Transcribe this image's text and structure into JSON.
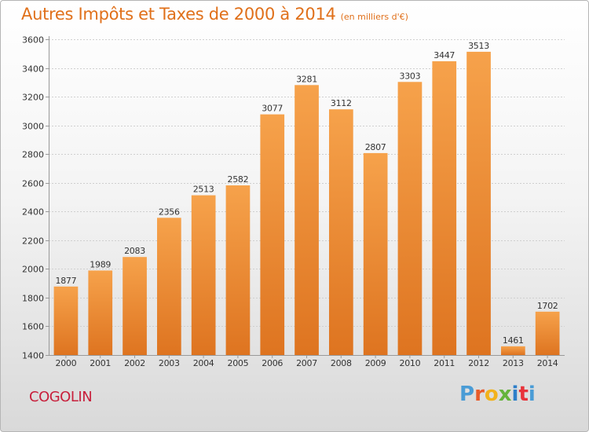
{
  "header": {
    "title": "Autres Impôts et Taxes de 2000 à 2014",
    "subtitle": "(en milliers d'€)"
  },
  "footer": {
    "town": "COGOLIN",
    "logo_letters": [
      "P",
      "r",
      "o",
      "x",
      "i",
      "t",
      "i"
    ]
  },
  "colors": {
    "bar_top": "#f6a24b",
    "bar_bottom": "#de7420",
    "title": "#e0701a",
    "town": "#c8203c",
    "logo": [
      "#4a9cd6",
      "#e85b2a",
      "#f2b21c",
      "#64b43c",
      "#2e7fc9",
      "#e8333a",
      "#4a9cd6"
    ]
  },
  "chart_data": {
    "type": "bar",
    "title": "Autres Impôts et Taxes de 2000 à 2014",
    "subtitle": "(en milliers d'€)",
    "categories": [
      "2000",
      "2001",
      "2002",
      "2003",
      "2004",
      "2005",
      "2006",
      "2007",
      "2008",
      "2009",
      "2010",
      "2011",
      "2012",
      "2013",
      "2014"
    ],
    "values": [
      1877,
      1989,
      2083,
      2356,
      2513,
      2582,
      3077,
      3281,
      3112,
      2807,
      3303,
      3447,
      3513,
      1461,
      1702
    ],
    "ylim": [
      1400,
      3600
    ],
    "yticks": [
      1400,
      1600,
      1800,
      2000,
      2200,
      2400,
      2600,
      2800,
      3000,
      3200,
      3400,
      3600
    ],
    "grid": true,
    "data_labels": true
  }
}
